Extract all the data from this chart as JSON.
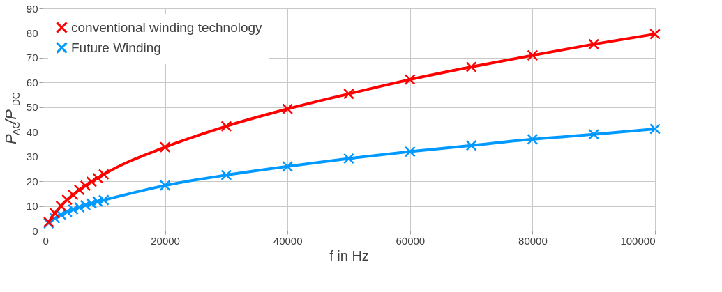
{
  "chart_data": {
    "type": "line",
    "xlabel": "f in Hz",
    "ylabel": "P$_{AC}$/P$_{DC}$",
    "x": [
      1000,
      2000,
      3000,
      4000,
      5000,
      6000,
      7000,
      8000,
      9000,
      10000,
      20000,
      30000,
      40000,
      50000,
      60000,
      70000,
      80000,
      90000,
      100000
    ],
    "series": [
      {
        "name": "conventional winding technology",
        "color": "#ff0000",
        "values": [
          3.5,
          7,
          10,
          12.5,
          14.5,
          16.5,
          18.2,
          19.8,
          21.3,
          22.8,
          33.8,
          42.3,
          49.3,
          55.4,
          61.2,
          66.3,
          71,
          75.5,
          79.6
        ]
      },
      {
        "name": "Future Winding",
        "color": "#0099ff",
        "values": [
          3,
          5,
          6.5,
          7.6,
          8.6,
          9.5,
          10.3,
          11,
          11.8,
          12.4,
          18.3,
          22.5,
          26,
          29.2,
          32,
          34.5,
          37,
          39,
          41.2
        ]
      }
    ],
    "xlim": [
      0,
      100000
    ],
    "xticks": [
      0,
      20000,
      40000,
      60000,
      80000,
      100000
    ],
    "ylim": [
      0,
      90
    ],
    "yticks": [
      0,
      10,
      20,
      30,
      40,
      50,
      60,
      70,
      80,
      90
    ],
    "grid": true,
    "legend": "top left",
    "marker": "cross",
    "line_style": "solid"
  }
}
